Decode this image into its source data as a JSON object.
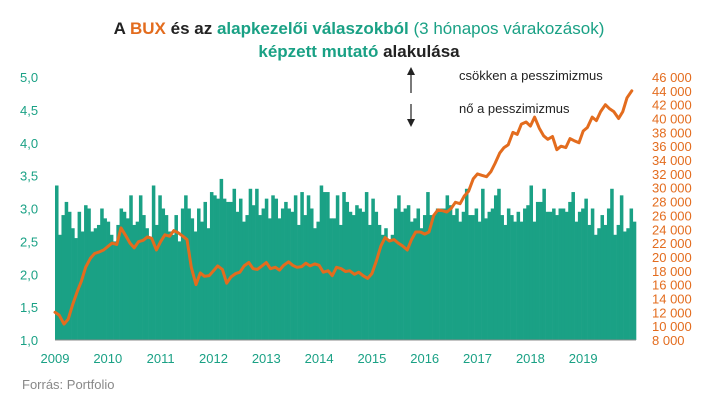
{
  "chart_data": {
    "type": "bar+line",
    "title": {
      "parts_line1": [
        {
          "text": "A ",
          "color": "#222222",
          "weight": "bold"
        },
        {
          "text": "BUX",
          "color": "#e36c1e",
          "weight": "bold"
        },
        {
          "text": " és az ",
          "color": "#222222",
          "weight": "bold"
        },
        {
          "text": "alapkezelői válaszokból",
          "color": "#1aa185",
          "weight": "bold"
        },
        {
          "text": " (3 hónapos várakozások)",
          "color": "#1aa185",
          "weight": "normal"
        }
      ],
      "parts_line2": [
        {
          "text": "képzett mutató",
          "color": "#1aa185",
          "weight": "bold"
        },
        {
          "text": " alakulása",
          "color": "#222222",
          "weight": "bold"
        }
      ]
    },
    "x_ticks": [
      "2009",
      "2010",
      "2011",
      "2012",
      "2013",
      "2014",
      "2015",
      "2016",
      "2017",
      "2018",
      "2019"
    ],
    "x_range": [
      2009.0,
      2020.0
    ],
    "left_axis": {
      "ticks": [
        "1,0",
        "1,5",
        "2,0",
        "2,5",
        "3,0",
        "3,5",
        "4,0",
        "4,5",
        "5,0"
      ],
      "min": 1.0,
      "max": 5.0
    },
    "right_axis": {
      "ticks": [
        "8 000",
        "10 000",
        "12 000",
        "14 000",
        "16 000",
        "18 000",
        "20 000",
        "22 000",
        "24 000",
        "26 000",
        "28 000",
        "30 000",
        "32 000",
        "34 000",
        "36 000",
        "38 000",
        "40 000",
        "42 000",
        "44 000",
        "46 000"
      ],
      "min": 8000,
      "max": 46000
    },
    "series": [
      {
        "name": "alapkezelői válaszokból képzett mutató",
        "type": "bar",
        "axis": "left",
        "color": "#1aa185",
        "values": [
          3.35,
          2.6,
          2.9,
          3.1,
          2.95,
          2.7,
          2.55,
          2.95,
          2.65,
          3.05,
          3.0,
          2.65,
          2.7,
          2.75,
          3.0,
          2.85,
          2.8,
          2.6,
          2.5,
          2.75,
          3.0,
          2.95,
          2.85,
          3.2,
          2.75,
          2.8,
          3.2,
          2.9,
          2.7,
          2.55,
          3.35,
          2.75,
          3.2,
          3.0,
          2.9,
          2.65,
          2.6,
          2.9,
          2.5,
          3.0,
          3.2,
          3.0,
          2.85,
          2.65,
          3.0,
          2.8,
          3.1,
          2.7,
          3.25,
          3.2,
          3.15,
          3.45,
          3.15,
          3.1,
          3.1,
          3.3,
          2.95,
          3.15,
          2.8,
          2.9,
          3.3,
          3.05,
          3.3,
          2.9,
          3.0,
          3.15,
          2.85,
          3.2,
          3.15,
          2.85,
          3.0,
          3.1,
          3.0,
          2.95,
          3.2,
          2.75,
          3.25,
          2.9,
          3.2,
          3.0,
          2.7,
          2.8,
          3.35,
          3.25,
          3.25,
          2.85,
          2.85,
          3.2,
          2.75,
          3.25,
          3.1,
          2.95,
          2.9,
          3.05,
          3.0,
          2.95,
          3.25,
          2.75,
          3.15,
          2.95,
          2.75,
          2.6,
          2.7,
          2.5,
          2.6,
          3.0,
          3.2,
          2.95,
          3.0,
          3.05,
          2.8,
          2.85,
          3.0,
          2.7,
          2.9,
          3.25,
          2.9,
          2.9,
          3.0,
          3.0,
          3.0,
          3.2,
          3.05,
          2.9,
          3.0,
          2.8,
          2.95,
          3.3,
          2.9,
          2.9,
          3.0,
          2.8,
          3.3,
          2.85,
          2.95,
          3.0,
          3.2,
          3.3,
          2.9,
          2.75,
          3.0,
          2.9,
          2.8,
          2.95,
          2.8,
          3.0,
          3.05,
          3.35,
          2.8,
          3.1,
          3.1,
          3.3,
          2.95,
          2.95,
          3.0,
          2.9,
          3.0,
          3.0,
          2.95,
          3.1,
          3.25,
          2.8,
          2.95,
          3.0,
          3.15,
          2.75,
          3.0,
          2.6,
          2.7,
          2.9,
          2.75,
          3.0,
          3.3,
          2.6,
          2.75,
          3.2,
          2.65,
          2.7,
          3.0,
          2.8
        ]
      },
      {
        "name": "BUX",
        "type": "line",
        "axis": "right",
        "color": "#e36c1e",
        "points": [
          [
            2009.0,
            12000
          ],
          [
            2009.08,
            11600
          ],
          [
            2009.17,
            10300
          ],
          [
            2009.25,
            11000
          ],
          [
            2009.33,
            13000
          ],
          [
            2009.42,
            15000
          ],
          [
            2009.5,
            16500
          ],
          [
            2009.58,
            18500
          ],
          [
            2009.67,
            19800
          ],
          [
            2009.75,
            20500
          ],
          [
            2009.83,
            20700
          ],
          [
            2009.92,
            21000
          ],
          [
            2010.0,
            21500
          ],
          [
            2010.08,
            22000
          ],
          [
            2010.17,
            21800
          ],
          [
            2010.25,
            24200
          ],
          [
            2010.33,
            23200
          ],
          [
            2010.42,
            22000
          ],
          [
            2010.5,
            21300
          ],
          [
            2010.58,
            22200
          ],
          [
            2010.67,
            22400
          ],
          [
            2010.75,
            22900
          ],
          [
            2010.83,
            22700
          ],
          [
            2010.92,
            21000
          ],
          [
            2011.0,
            22200
          ],
          [
            2011.08,
            23200
          ],
          [
            2011.17,
            23000
          ],
          [
            2011.25,
            23800
          ],
          [
            2011.33,
            23500
          ],
          [
            2011.42,
            23000
          ],
          [
            2011.5,
            22500
          ],
          [
            2011.58,
            18500
          ],
          [
            2011.67,
            16000
          ],
          [
            2011.75,
            17700
          ],
          [
            2011.83,
            17200
          ],
          [
            2011.92,
            17300
          ],
          [
            2012.0,
            18000
          ],
          [
            2012.08,
            18700
          ],
          [
            2012.17,
            18200
          ],
          [
            2012.25,
            16200
          ],
          [
            2012.33,
            17100
          ],
          [
            2012.42,
            17600
          ],
          [
            2012.5,
            17800
          ],
          [
            2012.58,
            18700
          ],
          [
            2012.67,
            19200
          ],
          [
            2012.75,
            18300
          ],
          [
            2012.83,
            18200
          ],
          [
            2012.92,
            18700
          ],
          [
            2013.0,
            19200
          ],
          [
            2013.08,
            18300
          ],
          [
            2013.17,
            18500
          ],
          [
            2013.25,
            18100
          ],
          [
            2013.33,
            18800
          ],
          [
            2013.42,
            19300
          ],
          [
            2013.5,
            18800
          ],
          [
            2013.58,
            18500
          ],
          [
            2013.67,
            18600
          ],
          [
            2013.75,
            19100
          ],
          [
            2013.83,
            18700
          ],
          [
            2013.92,
            19000
          ],
          [
            2014.0,
            18800
          ],
          [
            2014.08,
            17800
          ],
          [
            2014.17,
            18000
          ],
          [
            2014.25,
            17300
          ],
          [
            2014.33,
            18500
          ],
          [
            2014.42,
            18300
          ],
          [
            2014.5,
            17900
          ],
          [
            2014.58,
            18000
          ],
          [
            2014.67,
            17500
          ],
          [
            2014.75,
            17800
          ],
          [
            2014.83,
            17300
          ],
          [
            2014.92,
            16900
          ],
          [
            2015.0,
            17600
          ],
          [
            2015.08,
            19300
          ],
          [
            2015.17,
            21600
          ],
          [
            2015.25,
            22800
          ],
          [
            2015.33,
            22300
          ],
          [
            2015.42,
            22500
          ],
          [
            2015.5,
            22000
          ],
          [
            2015.58,
            21600
          ],
          [
            2015.67,
            21000
          ],
          [
            2015.75,
            22500
          ],
          [
            2015.83,
            23600
          ],
          [
            2015.92,
            23600
          ],
          [
            2016.0,
            23300
          ],
          [
            2016.08,
            23600
          ],
          [
            2016.17,
            26000
          ],
          [
            2016.25,
            26800
          ],
          [
            2016.33,
            26700
          ],
          [
            2016.42,
            26500
          ],
          [
            2016.5,
            27000
          ],
          [
            2016.58,
            27900
          ],
          [
            2016.67,
            27700
          ],
          [
            2016.75,
            28800
          ],
          [
            2016.83,
            29500
          ],
          [
            2016.92,
            31300
          ],
          [
            2017.0,
            32000
          ],
          [
            2017.08,
            31800
          ],
          [
            2017.17,
            31600
          ],
          [
            2017.25,
            32300
          ],
          [
            2017.33,
            33500
          ],
          [
            2017.42,
            35000
          ],
          [
            2017.5,
            35800
          ],
          [
            2017.58,
            36200
          ],
          [
            2017.67,
            38000
          ],
          [
            2017.75,
            37700
          ],
          [
            2017.83,
            39200
          ],
          [
            2017.92,
            39500
          ],
          [
            2018.0,
            38900
          ],
          [
            2018.08,
            40200
          ],
          [
            2018.17,
            38600
          ],
          [
            2018.25,
            37500
          ],
          [
            2018.33,
            37000
          ],
          [
            2018.42,
            37400
          ],
          [
            2018.5,
            35500
          ],
          [
            2018.58,
            36000
          ],
          [
            2018.67,
            35800
          ],
          [
            2018.75,
            37100
          ],
          [
            2018.83,
            36800
          ],
          [
            2018.92,
            36500
          ],
          [
            2019.0,
            38200
          ],
          [
            2019.08,
            38700
          ],
          [
            2019.17,
            40200
          ],
          [
            2019.25,
            39700
          ],
          [
            2019.33,
            41000
          ],
          [
            2019.42,
            42000
          ],
          [
            2019.5,
            41400
          ],
          [
            2019.58,
            41000
          ],
          [
            2019.67,
            40000
          ],
          [
            2019.75,
            41000
          ],
          [
            2019.83,
            43000
          ],
          [
            2019.92,
            44000
          ]
        ]
      }
    ],
    "annotations": {
      "top": "csökken a pesszimizmus",
      "bottom": "nő a pesszimizmus"
    },
    "colors": {
      "teal": "#1aa185",
      "orange": "#e36c1e",
      "text": "#222222"
    }
  },
  "source": "Forrás: Portfolio"
}
